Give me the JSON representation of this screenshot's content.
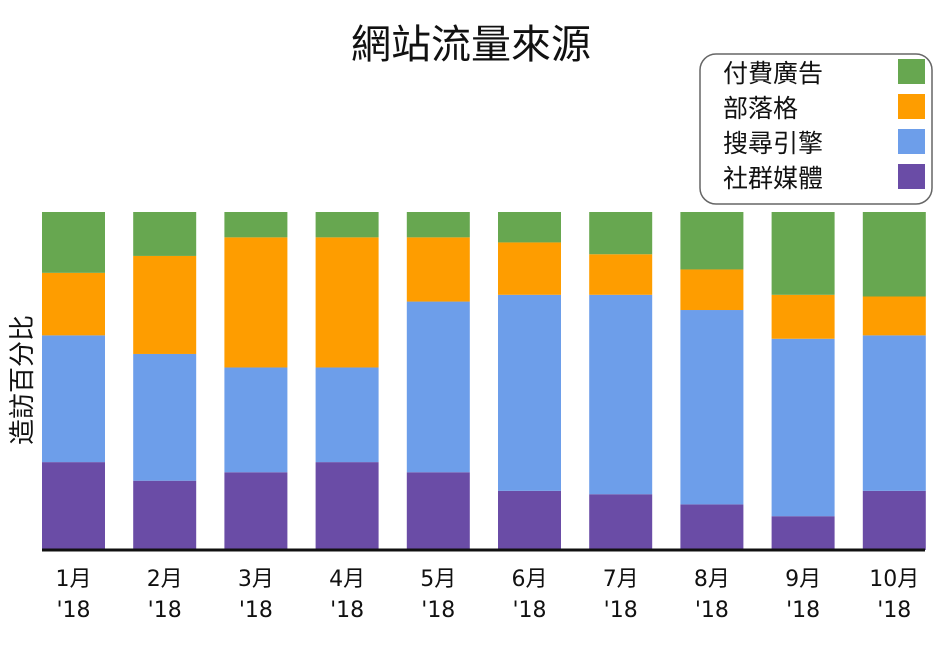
{
  "chart_data": {
    "type": "bar",
    "stacked": true,
    "normalized_percent": true,
    "title": "網站流量來源",
    "xlabel": "",
    "ylabel": "造訪百分比",
    "ylim": [
      0,
      100
    ],
    "grid": false,
    "legend_position": "top-right",
    "categories": [
      [
        "1月",
        "'18"
      ],
      [
        "2月",
        "'18"
      ],
      [
        "3月",
        "'18"
      ],
      [
        "4月",
        "'18"
      ],
      [
        "5月",
        "'18"
      ],
      [
        "6月",
        "'18"
      ],
      [
        "7月",
        "'18"
      ],
      [
        "8月",
        "'18"
      ],
      [
        "9月",
        "'18"
      ],
      [
        "10月",
        "'18"
      ]
    ],
    "series": [
      {
        "name": "社群媒體",
        "color": "#6a4ca6",
        "values": [
          26,
          20.5,
          23,
          26,
          23,
          17.5,
          16.5,
          13.5,
          10,
          17.5
        ]
      },
      {
        "name": "搜尋引擎",
        "color": "#6d9eea",
        "values": [
          37.5,
          37.5,
          31,
          28,
          50.5,
          58,
          59,
          57.5,
          52.5,
          46
        ]
      },
      {
        "name": "部落格",
        "color": "#fe9d00",
        "values": [
          18.5,
          29,
          38.5,
          38.5,
          19,
          15.5,
          12,
          12,
          13,
          11.5
        ]
      },
      {
        "name": "付費廣告",
        "color": "#67a750",
        "values": [
          18,
          13,
          7.5,
          7.5,
          7.5,
          9,
          12.5,
          17,
          24.5,
          25
        ]
      }
    ],
    "legend_order": [
      "付費廣告",
      "部落格",
      "搜尋引擎",
      "社群媒體"
    ]
  }
}
